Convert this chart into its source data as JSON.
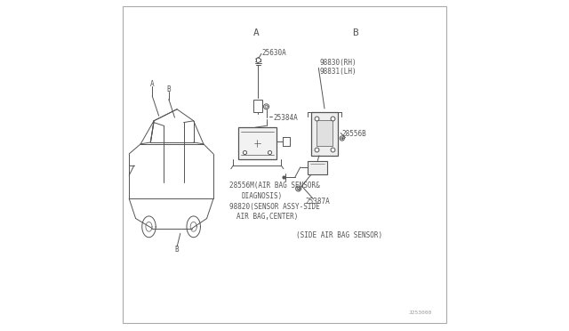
{
  "bg_color": "#ffffff",
  "line_color": "#555555",
  "text_color": "#555555",
  "fig_width": 6.4,
  "fig_height": 3.72,
  "dpi": 100,
  "section_A_label": "A",
  "section_B_label": "B",
  "part_25630A": "25630A",
  "part_25384A": "25384A",
  "part_28556M_line1": "28556M(AIR BAG SENSOR&",
  "part_28556M_line2": "DIAGNOSIS)",
  "part_98820_line1": "98820(SENSOR ASSY-SIDE",
  "part_98820_line2": "AIR BAG,CENTER)",
  "part_98830": "98830(RH)",
  "part_98831": "98831(LH)",
  "part_28556B": "28556B",
  "part_25387A": "25387A",
  "side_sensor_label": "(SIDE AIR BAG SENSOR)",
  "diagram_ref": "J253000",
  "font_size_labels": 5.5,
  "font_size_section": 8
}
